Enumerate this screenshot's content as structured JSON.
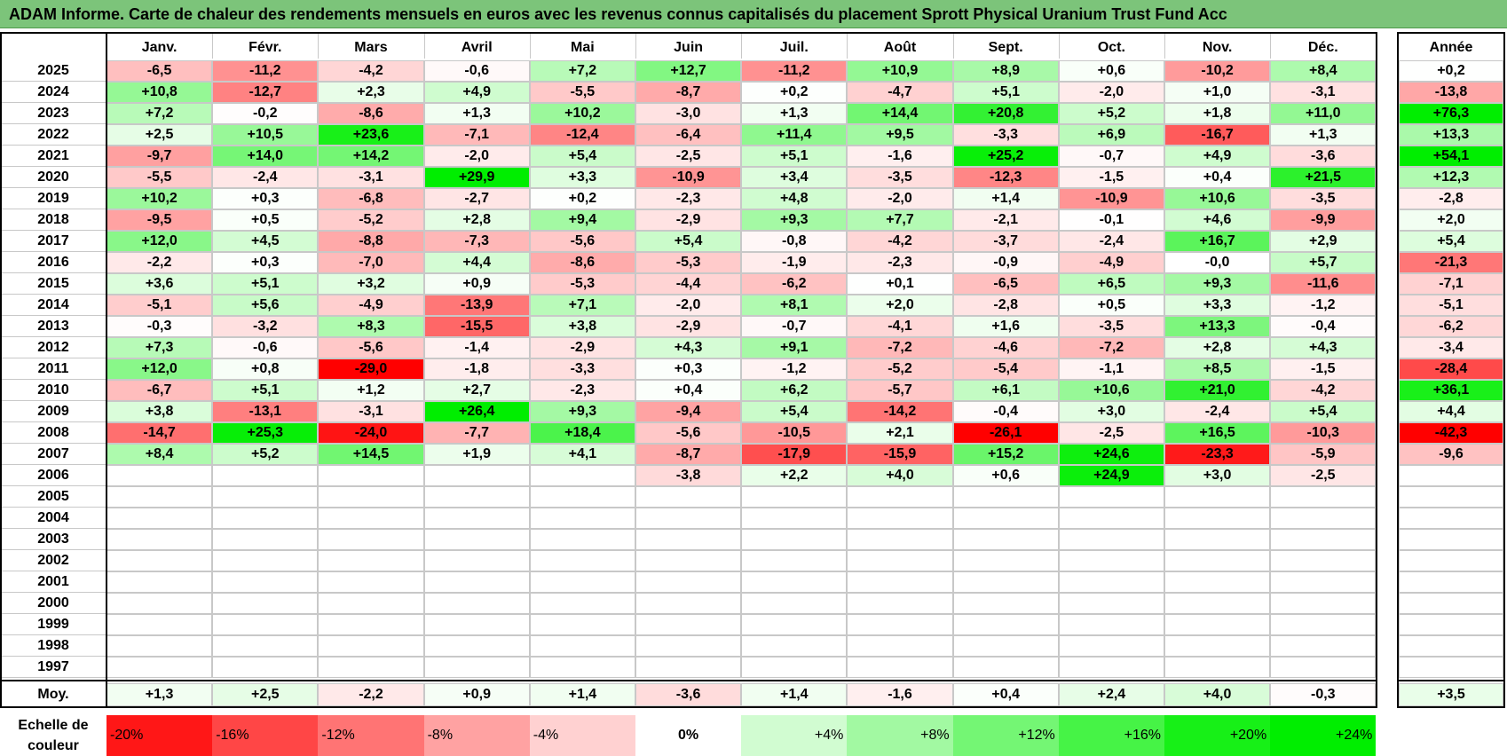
{
  "title": "ADAM Informe. Carte de chaleur des rendements mensuels en euros avec les revenus connus capitalisés du placement Sprott Physical Uranium Trust Fund Acc",
  "chart_data": {
    "type": "heatmap",
    "months": [
      "Janv.",
      "Févr.",
      "Mars",
      "Avril",
      "Mai",
      "Juin",
      "Juil.",
      "Août",
      "Sept.",
      "Oct.",
      "Nov.",
      "Déc."
    ],
    "year_header": "Année",
    "rows": [
      {
        "year": "2025",
        "values": [
          "-6,5",
          "-11,2",
          "-4,2",
          "-0,6",
          "+7,2",
          "+12,7",
          "-11,2",
          "+10,9",
          "+8,9",
          "+0,6",
          "-10,2",
          "+8,4"
        ],
        "annual": "+0,2"
      },
      {
        "year": "2024",
        "values": [
          "+10,8",
          "-12,7",
          "+2,3",
          "+4,9",
          "-5,5",
          "-8,7",
          "+0,2",
          "-4,7",
          "+5,1",
          "-2,0",
          "+1,0",
          "-3,1"
        ],
        "annual": "-13,8"
      },
      {
        "year": "2023",
        "values": [
          "+7,2",
          "-0,2",
          "-8,6",
          "+1,3",
          "+10,2",
          "-3,0",
          "+1,3",
          "+14,4",
          "+20,8",
          "+5,2",
          "+1,8",
          "+11,0"
        ],
        "annual": "+76,3"
      },
      {
        "year": "2022",
        "values": [
          "+2,5",
          "+10,5",
          "+23,6",
          "-7,1",
          "-12,4",
          "-6,4",
          "+11,4",
          "+9,5",
          "-3,3",
          "+6,9",
          "-16,7",
          "+1,3"
        ],
        "annual": "+13,3"
      },
      {
        "year": "2021",
        "values": [
          "-9,7",
          "+14,0",
          "+14,2",
          "-2,0",
          "+5,4",
          "-2,5",
          "+5,1",
          "-1,6",
          "+25,2",
          "-0,7",
          "+4,9",
          "-3,6"
        ],
        "annual": "+54,1"
      },
      {
        "year": "2020",
        "values": [
          "-5,5",
          "-2,4",
          "-3,1",
          "+29,9",
          "+3,3",
          "-10,9",
          "+3,4",
          "-3,5",
          "-12,3",
          "-1,5",
          "+0,4",
          "+21,5"
        ],
        "annual": "+12,3"
      },
      {
        "year": "2019",
        "values": [
          "+10,2",
          "+0,3",
          "-6,8",
          "-2,7",
          "+0,2",
          "-2,3",
          "+4,8",
          "-2,0",
          "+1,4",
          "-10,9",
          "+10,6",
          "-3,5"
        ],
        "annual": "-2,8"
      },
      {
        "year": "2018",
        "values": [
          "-9,5",
          "+0,5",
          "-5,2",
          "+2,8",
          "+9,4",
          "-2,9",
          "+9,3",
          "+7,7",
          "-2,1",
          "-0,1",
          "+4,6",
          "-9,9"
        ],
        "annual": "+2,0"
      },
      {
        "year": "2017",
        "values": [
          "+12,0",
          "+4,5",
          "-8,8",
          "-7,3",
          "-5,6",
          "+5,4",
          "-0,8",
          "-4,2",
          "-3,7",
          "-2,4",
          "+16,7",
          "+2,9"
        ],
        "annual": "+5,4"
      },
      {
        "year": "2016",
        "values": [
          "-2,2",
          "+0,3",
          "-7,0",
          "+4,4",
          "-8,6",
          "-5,3",
          "-1,9",
          "-2,3",
          "-0,9",
          "-4,9",
          "-0,0",
          "+5,7"
        ],
        "annual": "-21,3"
      },
      {
        "year": "2015",
        "values": [
          "+3,6",
          "+5,1",
          "+3,2",
          "+0,9",
          "-5,3",
          "-4,4",
          "-6,2",
          "+0,1",
          "-6,5",
          "+6,5",
          "+9,3",
          "-11,6"
        ],
        "annual": "-7,1"
      },
      {
        "year": "2014",
        "values": [
          "-5,1",
          "+5,6",
          "-4,9",
          "-13,9",
          "+7,1",
          "-2,0",
          "+8,1",
          "+2,0",
          "-2,8",
          "+0,5",
          "+3,3",
          "-1,2"
        ],
        "annual": "-5,1"
      },
      {
        "year": "2013",
        "values": [
          "-0,3",
          "-3,2",
          "+8,3",
          "-15,5",
          "+3,8",
          "-2,9",
          "-0,7",
          "-4,1",
          "+1,6",
          "-3,5",
          "+13,3",
          "-0,4"
        ],
        "annual": "-6,2"
      },
      {
        "year": "2012",
        "values": [
          "+7,3",
          "-0,6",
          "-5,6",
          "-1,4",
          "-2,9",
          "+4,3",
          "+9,1",
          "-7,2",
          "-4,6",
          "-7,2",
          "+2,8",
          "+4,3"
        ],
        "annual": "-3,4"
      },
      {
        "year": "2011",
        "values": [
          "+12,0",
          "+0,8",
          "-29,0",
          "-1,8",
          "-3,3",
          "+0,3",
          "-1,2",
          "-5,2",
          "-5,4",
          "-1,1",
          "+8,5",
          "-1,5"
        ],
        "annual": "-28,4"
      },
      {
        "year": "2010",
        "values": [
          "-6,7",
          "+5,1",
          "+1,2",
          "+2,7",
          "-2,3",
          "+0,4",
          "+6,2",
          "-5,7",
          "+6,1",
          "+10,6",
          "+21,0",
          "-4,2"
        ],
        "annual": "+36,1"
      },
      {
        "year": "2009",
        "values": [
          "+3,8",
          "-13,1",
          "-3,1",
          "+26,4",
          "+9,3",
          "-9,4",
          "+5,4",
          "-14,2",
          "-0,4",
          "+3,0",
          "-2,4",
          "+5,4"
        ],
        "annual": "+4,4"
      },
      {
        "year": "2008",
        "values": [
          "-14,7",
          "+25,3",
          "-24,0",
          "-7,7",
          "+18,4",
          "-5,6",
          "-10,5",
          "+2,1",
          "-26,1",
          "-2,5",
          "+16,5",
          "-10,3"
        ],
        "annual": "-42,3"
      },
      {
        "year": "2007",
        "values": [
          "+8,4",
          "+5,2",
          "+14,5",
          "+1,9",
          "+4,1",
          "-8,7",
          "-17,9",
          "-15,9",
          "+15,2",
          "+24,6",
          "-23,3",
          "-5,9"
        ],
        "annual": "-9,6"
      },
      {
        "year": "2006",
        "values": [
          "",
          "",
          "",
          "",
          "",
          "-3,8",
          "+2,2",
          "+4,0",
          "+0,6",
          "+24,9",
          "+3,0",
          "-2,5"
        ],
        "annual": ""
      },
      {
        "year": "2005",
        "values": [
          "",
          "",
          "",
          "",
          "",
          "",
          "",
          "",
          "",
          "",
          "",
          ""
        ],
        "annual": ""
      },
      {
        "year": "2004",
        "values": [
          "",
          "",
          "",
          "",
          "",
          "",
          "",
          "",
          "",
          "",
          "",
          ""
        ],
        "annual": ""
      },
      {
        "year": "2003",
        "values": [
          "",
          "",
          "",
          "",
          "",
          "",
          "",
          "",
          "",
          "",
          "",
          ""
        ],
        "annual": ""
      },
      {
        "year": "2002",
        "values": [
          "",
          "",
          "",
          "",
          "",
          "",
          "",
          "",
          "",
          "",
          "",
          ""
        ],
        "annual": ""
      },
      {
        "year": "2001",
        "values": [
          "",
          "",
          "",
          "",
          "",
          "",
          "",
          "",
          "",
          "",
          "",
          ""
        ],
        "annual": ""
      },
      {
        "year": "2000",
        "values": [
          "",
          "",
          "",
          "",
          "",
          "",
          "",
          "",
          "",
          "",
          "",
          ""
        ],
        "annual": ""
      },
      {
        "year": "1999",
        "values": [
          "",
          "",
          "",
          "",
          "",
          "",
          "",
          "",
          "",
          "",
          "",
          ""
        ],
        "annual": ""
      },
      {
        "year": "1998",
        "values": [
          "",
          "",
          "",
          "",
          "",
          "",
          "",
          "",
          "",
          "",
          "",
          ""
        ],
        "annual": ""
      },
      {
        "year": "1997",
        "values": [
          "",
          "",
          "",
          "",
          "",
          "",
          "",
          "",
          "",
          "",
          "",
          ""
        ],
        "annual": ""
      }
    ],
    "average": {
      "label": "Moy.",
      "values": [
        "+1,3",
        "+2,5",
        "-2,2",
        "+0,9",
        "+1,4",
        "-3,6",
        "+1,4",
        "-1,6",
        "+0,4",
        "+2,4",
        "+4,0",
        "-0,3"
      ],
      "annual": "+3,5"
    },
    "color_scale": {
      "label": "Echelle de couleur",
      "steps": [
        "-20%",
        "-16%",
        "-12%",
        "-8%",
        "-4%",
        "0%",
        "+4%",
        "+8%",
        "+12%",
        "+16%",
        "+20%",
        "+24%"
      ],
      "negative_color": "#ff0000",
      "neutral_color": "#ffffff",
      "positive_color": "#00ee00"
    }
  }
}
